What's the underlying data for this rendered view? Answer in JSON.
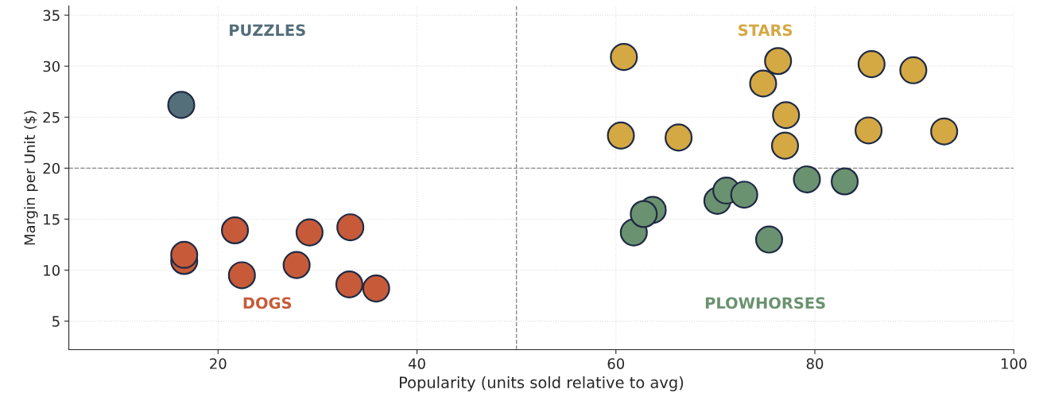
{
  "chart_data": {
    "type": "scatter",
    "xlabel": "Popularity (units sold relative to avg)",
    "ylabel": "Margin per Unit ($)",
    "xlim": [
      5,
      100
    ],
    "ylim": [
      2.2,
      35.9
    ],
    "xticks": [
      20,
      40,
      60,
      80,
      100
    ],
    "yticks": [
      5,
      10,
      15,
      20,
      25,
      30,
      35
    ],
    "grid": true,
    "legend": false,
    "marker": "circle",
    "series": [
      {
        "color": "#546e7a",
        "x": [
          16.3
        ],
        "values": [
          26.2
        ]
      },
      {
        "color": "#d4a843",
        "x": [
          60.8,
          60.5,
          66.3,
          74.8,
          76.3,
          77.1,
          77.0,
          85.7,
          85.4,
          89.9,
          93.0
        ],
        "values": [
          30.9,
          23.2,
          23.0,
          28.3,
          30.5,
          25.2,
          22.2,
          30.2,
          23.7,
          29.6,
          23.6
        ]
      },
      {
        "color": "#c75b39",
        "x": [
          16.6,
          16.6,
          21.7,
          22.4,
          29.2,
          27.9,
          33.3,
          33.2,
          35.9
        ],
        "values": [
          10.9,
          11.5,
          13.9,
          9.5,
          13.7,
          10.5,
          14.2,
          8.6,
          8.2
        ]
      },
      {
        "color": "#6a9270",
        "x": [
          61.8,
          63.7,
          62.8,
          70.2,
          71.1,
          72.9,
          75.4,
          79.2,
          83.0
        ],
        "values": [
          13.7,
          15.9,
          15.5,
          16.8,
          17.8,
          17.4,
          13.0,
          18.9,
          18.7
        ]
      }
    ],
    "ref_lines": [
      {
        "axis": "x",
        "value": 50,
        "color": "#888888",
        "line_style": "dashed"
      },
      {
        "axis": "y",
        "value": 20,
        "color": "#888888",
        "line_style": "dashed"
      }
    ],
    "annotations": [
      "PUZZLES",
      "STARS",
      "DOGS",
      "PLOWHORSES"
    ]
  }
}
